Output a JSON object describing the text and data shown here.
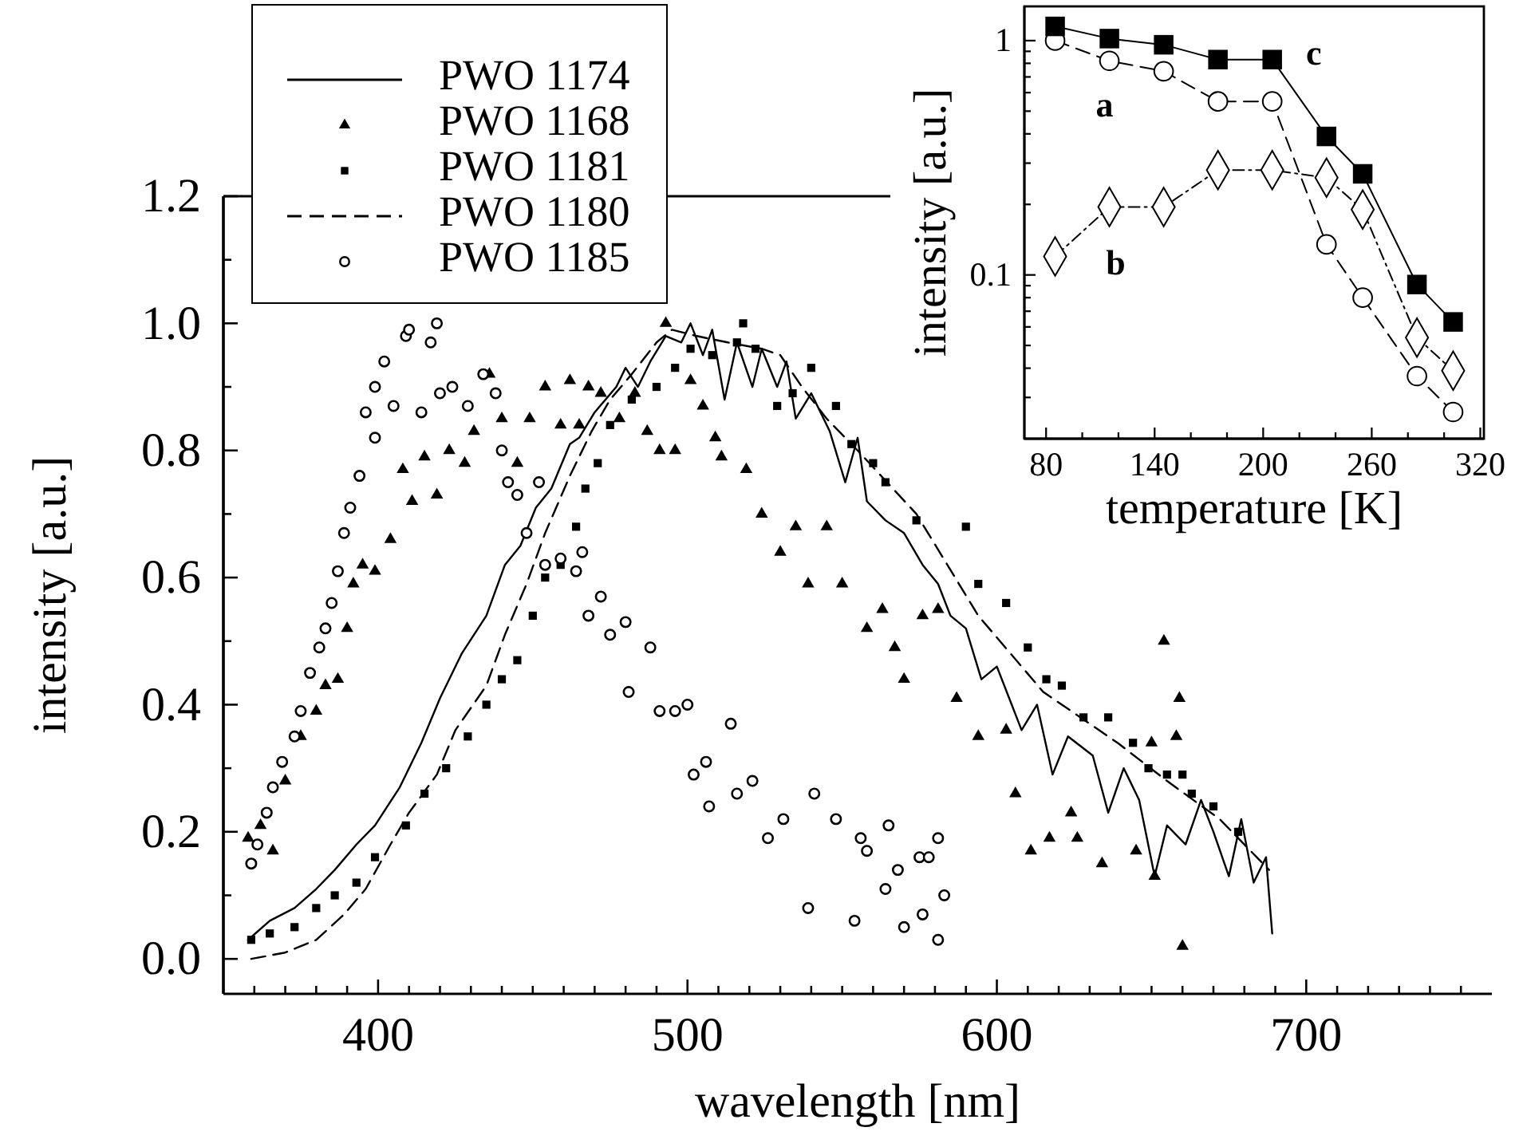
{
  "chart_data": [
    {
      "type": "line",
      "xlabel": "wavelength [nm]",
      "ylabel": "intensity [a.u.]",
      "xlim": [
        350,
        760
      ],
      "ylim": [
        -0.055,
        1.2
      ],
      "xticks": [
        {
          "value": 360,
          "label": null
        },
        {
          "value": 370,
          "label": null
        },
        {
          "value": 380,
          "label": null
        },
        {
          "value": 390,
          "label": null
        },
        400,
        {
          "value": 410,
          "label": null
        },
        {
          "value": 420,
          "label": null
        },
        {
          "value": 430,
          "label": null
        },
        {
          "value": 440,
          "label": null
        },
        {
          "value": 450,
          "label": null
        },
        {
          "value": 460,
          "label": null
        },
        {
          "value": 470,
          "label": null
        },
        {
          "value": 480,
          "label": null
        },
        {
          "value": 490,
          "label": null
        },
        500,
        {
          "value": 510,
          "label": null
        },
        {
          "value": 520,
          "label": null
        },
        {
          "value": 530,
          "label": null
        },
        {
          "value": 540,
          "label": null
        },
        {
          "value": 550,
          "label": null
        },
        {
          "value": 560,
          "label": null
        },
        {
          "value": 570,
          "label": null
        },
        {
          "value": 580,
          "label": null
        },
        {
          "value": 590,
          "label": null
        },
        600,
        {
          "value": 610,
          "label": null
        },
        {
          "value": 620,
          "label": null
        },
        {
          "value": 630,
          "label": null
        },
        {
          "value": 640,
          "label": null
        },
        {
          "value": 650,
          "label": null
        },
        {
          "value": 660,
          "label": null
        },
        {
          "value": 670,
          "label": null
        },
        {
          "value": 680,
          "label": null
        },
        {
          "value": 690,
          "label": null
        },
        700,
        {
          "value": 710,
          "label": null
        },
        {
          "value": 720,
          "label": null
        },
        {
          "value": 730,
          "label": null
        },
        {
          "value": 740,
          "label": null
        },
        {
          "value": 750,
          "label": null
        }
      ],
      "yticks": [
        {
          "value": 0,
          "label": "0.0"
        },
        {
          "value": 0.1,
          "label": null
        },
        {
          "value": 0.2,
          "label": "0.2"
        },
        {
          "value": 0.3,
          "label": null
        },
        {
          "value": 0.4,
          "label": "0.4"
        },
        {
          "value": 0.5,
          "label": null
        },
        {
          "value": 0.6,
          "label": "0.6"
        },
        {
          "value": 0.7,
          "label": null
        },
        {
          "value": 0.8,
          "label": "0.8"
        },
        {
          "value": 0.9,
          "label": null
        },
        {
          "value": 1,
          "label": "1.0"
        },
        {
          "value": 1.1,
          "label": null
        },
        {
          "value": 1.2,
          "label": "1.2"
        }
      ],
      "legend": "top left",
      "series": [
        {
          "name": "PWO 1174",
          "type": "line",
          "line_style": "solid",
          "color": "#000000",
          "x": [
            358,
            365,
            373,
            380,
            386,
            393,
            399,
            407,
            414,
            420,
            427,
            435,
            441,
            446,
            451,
            456,
            462,
            465,
            470,
            477,
            480,
            484,
            488,
            493,
            498,
            501,
            505,
            508,
            512,
            516,
            521,
            524,
            529,
            532,
            535,
            540,
            546,
            551,
            555,
            558,
            564,
            570,
            576,
            581,
            585,
            590,
            595,
            600,
            608,
            613,
            618,
            623,
            631,
            636,
            641,
            646,
            651,
            655,
            661,
            666,
            670,
            675,
            679,
            683,
            687,
            689
          ],
          "values": [
            0.03,
            0.06,
            0.08,
            0.11,
            0.14,
            0.18,
            0.21,
            0.27,
            0.34,
            0.41,
            0.48,
            0.54,
            0.62,
            0.65,
            0.71,
            0.74,
            0.81,
            0.82,
            0.86,
            0.9,
            0.93,
            0.9,
            0.94,
            0.98,
            0.97,
            1.0,
            0.95,
            0.99,
            0.88,
            0.97,
            0.9,
            0.96,
            0.9,
            0.94,
            0.85,
            0.89,
            0.83,
            0.75,
            0.82,
            0.72,
            0.69,
            0.67,
            0.62,
            0.59,
            0.54,
            0.52,
            0.44,
            0.46,
            0.36,
            0.4,
            0.29,
            0.35,
            0.32,
            0.23,
            0.3,
            0.25,
            0.13,
            0.21,
            0.18,
            0.25,
            0.2,
            0.13,
            0.22,
            0.12,
            0.16,
            0.04
          ]
        },
        {
          "name": "PWO 1168",
          "type": "scatter",
          "marker": "triangle",
          "color": "#000000",
          "x": [
            358,
            362,
            366,
            370,
            375,
            380,
            383,
            387,
            390,
            392,
            395,
            399,
            404,
            408,
            411,
            415,
            419,
            423,
            428,
            431,
            436,
            440,
            445,
            449,
            454,
            459,
            462,
            465,
            468,
            472,
            478,
            483,
            487,
            491,
            493,
            496,
            501,
            505,
            509,
            511,
            519,
            524,
            530,
            535,
            539,
            545,
            550,
            558,
            563,
            567,
            570,
            576,
            581,
            587,
            594,
            603,
            606,
            611,
            617,
            624,
            626,
            634,
            645,
            650,
            651,
            654,
            658,
            659,
            660
          ],
          "values": [
            0.19,
            0.21,
            0.17,
            0.28,
            0.35,
            0.39,
            0.43,
            0.44,
            0.52,
            0.59,
            0.62,
            0.61,
            0.66,
            0.77,
            0.72,
            0.79,
            0.73,
            0.8,
            0.78,
            0.83,
            0.92,
            0.85,
            0.78,
            0.85,
            0.9,
            0.84,
            0.91,
            0.84,
            0.9,
            0.89,
            0.85,
            0.89,
            0.83,
            0.8,
            1.0,
            0.8,
            0.91,
            0.87,
            0.82,
            0.79,
            0.77,
            0.7,
            0.64,
            0.68,
            0.59,
            0.68,
            0.59,
            0.52,
            0.55,
            0.49,
            0.44,
            0.54,
            0.55,
            0.41,
            0.35,
            0.36,
            0.26,
            0.17,
            0.19,
            0.23,
            0.19,
            0.15,
            0.17,
            0.34,
            0.13,
            0.5,
            0.35,
            0.41,
            0.02
          ]
        },
        {
          "name": "PWO 1181",
          "type": "scatter",
          "marker": "square",
          "color": "#000000",
          "x": [
            359,
            365,
            373,
            380,
            386,
            393,
            399,
            409,
            415,
            422,
            429,
            435,
            440,
            445,
            450,
            454,
            459,
            464,
            467,
            471,
            475,
            482,
            490,
            496,
            501,
            508,
            516,
            518,
            522,
            529,
            534,
            540,
            548,
            553,
            560,
            564,
            574,
            590,
            594,
            603,
            610,
            616,
            621,
            628,
            636,
            644,
            649,
            655,
            660,
            663,
            670,
            678
          ],
          "values": [
            0.03,
            0.04,
            0.05,
            0.08,
            0.1,
            0.12,
            0.16,
            0.21,
            0.26,
            0.3,
            0.35,
            0.4,
            0.44,
            0.47,
            0.54,
            0.6,
            0.62,
            0.68,
            0.74,
            0.78,
            0.84,
            0.88,
            0.9,
            0.93,
            0.96,
            0.95,
            0.97,
            1.0,
            0.96,
            0.87,
            0.89,
            0.93,
            0.87,
            0.81,
            0.78,
            0.75,
            0.69,
            0.68,
            0.59,
            0.56,
            0.49,
            0.44,
            0.43,
            0.38,
            0.38,
            0.34,
            0.3,
            0.29,
            0.29,
            0.26,
            0.24,
            0.2
          ]
        },
        {
          "name": "PWO 1180",
          "type": "line",
          "line_style": "dashed",
          "color": "#000000",
          "x": [
            359,
            370,
            380,
            389,
            396,
            404,
            410,
            419,
            425,
            435,
            441,
            448,
            454,
            462,
            469,
            475,
            482,
            490,
            495,
            503,
            513,
            524,
            530,
            537,
            545,
            555,
            574,
            594,
            615,
            639,
            655,
            672,
            688
          ],
          "values": [
            0.0,
            0.01,
            0.03,
            0.07,
            0.11,
            0.18,
            0.23,
            0.29,
            0.36,
            0.43,
            0.51,
            0.59,
            0.67,
            0.76,
            0.83,
            0.88,
            0.92,
            0.97,
            0.99,
            0.98,
            0.97,
            0.96,
            0.95,
            0.9,
            0.85,
            0.8,
            0.7,
            0.54,
            0.42,
            0.34,
            0.28,
            0.22,
            0.14
          ]
        },
        {
          "name": "PWO 1185",
          "type": "scatter",
          "marker": "circle",
          "color": "#000000",
          "x": [
            359,
            361,
            364,
            366,
            369,
            373,
            375,
            378,
            381,
            383,
            385,
            387,
            389,
            391,
            394,
            396,
            399,
            399,
            402,
            405,
            409,
            410,
            414,
            417,
            419,
            420,
            424,
            429,
            434,
            438,
            440,
            442,
            445,
            448,
            452,
            454,
            459,
            464,
            466,
            468,
            472,
            475,
            480,
            481,
            488,
            491,
            496,
            500,
            502,
            506,
            507,
            514,
            516,
            521,
            526,
            531,
            539,
            541,
            548,
            554,
            556,
            558,
            564,
            565,
            568,
            570,
            575,
            576,
            578,
            581,
            581,
            583
          ],
          "values": [
            0.15,
            0.18,
            0.23,
            0.27,
            0.31,
            0.35,
            0.39,
            0.45,
            0.49,
            0.52,
            0.56,
            0.61,
            0.67,
            0.71,
            0.76,
            0.86,
            0.9,
            0.82,
            0.94,
            0.87,
            0.98,
            0.99,
            0.86,
            0.97,
            1.0,
            0.89,
            0.9,
            0.87,
            0.92,
            0.89,
            0.8,
            0.75,
            0.73,
            0.67,
            0.75,
            0.62,
            0.63,
            0.61,
            0.64,
            0.54,
            0.57,
            0.51,
            0.53,
            0.42,
            0.49,
            0.39,
            0.39,
            0.4,
            0.29,
            0.31,
            0.24,
            0.37,
            0.26,
            0.28,
            0.19,
            0.22,
            0.08,
            0.26,
            0.22,
            0.06,
            0.19,
            0.17,
            0.11,
            0.21,
            0.14,
            0.05,
            0.16,
            0.07,
            0.16,
            0.19,
            0.03,
            0.1
          ]
        }
      ]
    },
    {
      "type": "line",
      "xlabel": "temperature [K]",
      "ylabel": "intensity [a.u.]",
      "log": "y",
      "xlim": [
        68,
        322
      ],
      "ylim": [
        0.02,
        1.4
      ],
      "xticks": [
        80,
        {
          "value": 100,
          "label": null
        },
        {
          "value": 120,
          "label": null
        },
        140,
        {
          "value": 160,
          "label": null
        },
        {
          "value": 180,
          "label": null
        },
        200,
        {
          "value": 220,
          "label": null
        },
        {
          "value": 240,
          "label": null
        },
        260,
        {
          "value": 280,
          "label": null
        },
        {
          "value": 300,
          "label": null
        },
        320
      ],
      "yticks": [
        {
          "value": 0.03,
          "label": null
        },
        {
          "value": 0.04,
          "label": null
        },
        {
          "value": 0.05,
          "label": null
        },
        {
          "value": 0.06,
          "label": null
        },
        {
          "value": 0.07,
          "label": null
        },
        {
          "value": 0.08,
          "label": null
        },
        {
          "value": 0.09,
          "label": null
        },
        0.1,
        {
          "value": 0.2,
          "label": null
        },
        {
          "value": 0.3,
          "label": null
        },
        {
          "value": 0.4,
          "label": null
        },
        {
          "value": 0.5,
          "label": null
        },
        {
          "value": 0.6,
          "label": null
        },
        {
          "value": 0.7,
          "label": null
        },
        {
          "value": 0.8,
          "label": null
        },
        {
          "value": 0.9,
          "label": null
        },
        1
      ],
      "series": [
        {
          "name": "a",
          "marker": "circle",
          "line_style": "dashed",
          "color": "#000000",
          "x": [
            85,
            115,
            145,
            175,
            205,
            235,
            255,
            285,
            305
          ],
          "values": [
            1.0,
            0.82,
            0.74,
            0.55,
            0.55,
            0.135,
            0.08,
            0.037,
            0.026
          ]
        },
        {
          "name": "b",
          "marker": "diamond",
          "line_style": "dotted",
          "color": "#000000",
          "x": [
            85,
            115,
            145,
            175,
            205,
            235,
            255,
            285,
            305
          ],
          "values": [
            0.12,
            0.195,
            0.195,
            0.28,
            0.28,
            0.26,
            0.19,
            0.054,
            0.039
          ]
        },
        {
          "name": "c",
          "marker": "square",
          "line_style": "solid",
          "color": "#000000",
          "x": [
            85,
            115,
            145,
            175,
            205,
            235,
            255,
            285,
            305
          ],
          "values": [
            1.15,
            1.02,
            0.96,
            0.83,
            0.83,
            0.39,
            0.27,
            0.091,
            0.063
          ]
        }
      ]
    }
  ]
}
